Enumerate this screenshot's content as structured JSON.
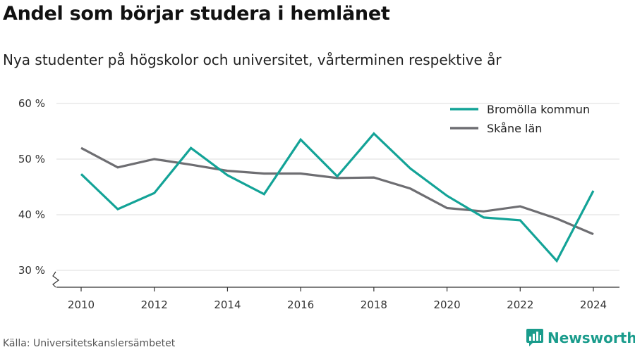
{
  "header": {
    "title": "Andel som börjar studera i hemlänet",
    "subtitle": "Nya studenter på högskolor och universitet, vårterminen respektive år"
  },
  "footer": {
    "source": "Källa: Universitetskanslersämbetet",
    "brand_name": "Newsworthy",
    "brand_icon": "newsworthy-logo-icon",
    "brand_color": "#1a9c8c"
  },
  "chart_data": {
    "type": "line",
    "title": "Andel som börjar studera i hemlänet",
    "subtitle": "Nya studenter på högskolor och universitet, vårterminen respektive år",
    "xlabel": "",
    "ylabel": "",
    "x": [
      2010,
      2011,
      2012,
      2013,
      2014,
      2015,
      2016,
      2017,
      2018,
      2019,
      2020,
      2021,
      2022,
      2023,
      2024
    ],
    "xticks": [
      2010,
      2012,
      2014,
      2016,
      2018,
      2020,
      2022,
      2024
    ],
    "xtick_labels": [
      "2010",
      "2012",
      "2014",
      "2016",
      "2018",
      "2020",
      "2022",
      "2024"
    ],
    "yticks": [
      30,
      40,
      50,
      60
    ],
    "ytick_labels": [
      "30 %",
      "40 %",
      "50 %",
      "60 %"
    ],
    "ylim": [
      30,
      60
    ],
    "y_axis_break": true,
    "grid": true,
    "legend_position": "top-right",
    "series": [
      {
        "name": "Bromölla kommun",
        "color": "#13a397",
        "values": [
          47.3,
          41.0,
          43.9,
          52.0,
          47.1,
          43.7,
          53.5,
          46.9,
          54.6,
          48.3,
          43.4,
          39.5,
          39.0,
          31.7,
          44.3
        ]
      },
      {
        "name": "Skåne län",
        "color": "#6e6e72",
        "values": [
          52.0,
          48.5,
          50.0,
          49.0,
          47.9,
          47.4,
          47.4,
          46.6,
          46.7,
          44.7,
          41.2,
          40.6,
          41.5,
          39.3,
          36.5
        ]
      }
    ]
  }
}
